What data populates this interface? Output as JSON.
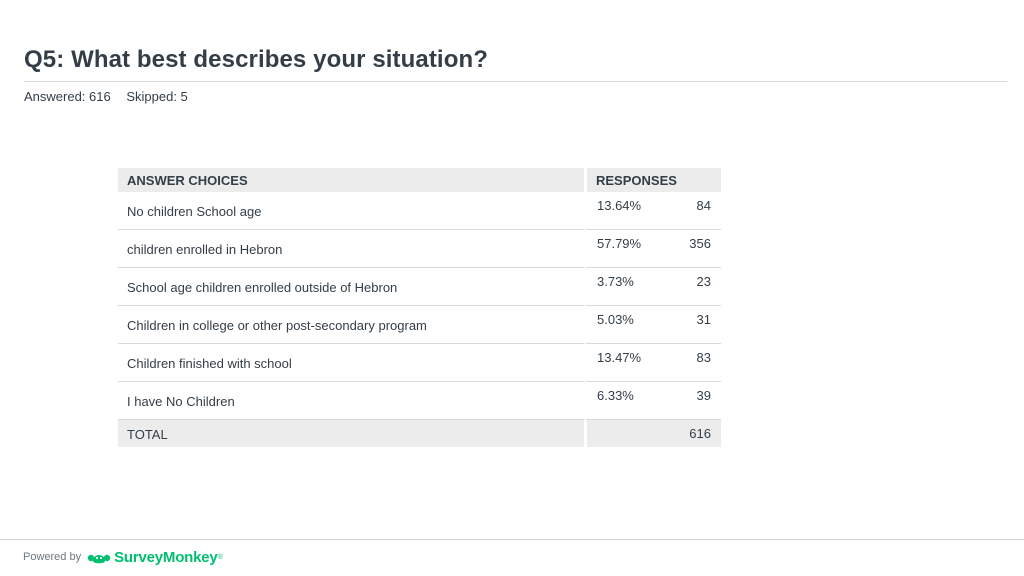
{
  "title": "Q5: What best describes your situation?",
  "stats": {
    "answered": "Answered: 616",
    "skipped": "Skipped: 5"
  },
  "table": {
    "headers": {
      "choices": "ANSWER CHOICES",
      "responses": "RESPONSES"
    },
    "rows": [
      {
        "choice": "No children School age",
        "percent": "13.64%",
        "count": "84"
      },
      {
        "choice": "children enrolled in Hebron",
        "percent": "57.79%",
        "count": "356"
      },
      {
        "choice": "School age children enrolled outside of Hebron",
        "percent": "3.73%",
        "count": "23"
      },
      {
        "choice": "Children in college or other post-secondary program",
        "percent": "5.03%",
        "count": "31"
      },
      {
        "choice": "Children finished with school",
        "percent": "13.47%",
        "count": "83"
      },
      {
        "choice": "I have No Children",
        "percent": "6.33%",
        "count": "39"
      }
    ],
    "total": {
      "label": "TOTAL",
      "count": "616"
    }
  },
  "footer": {
    "powered_by": "Powered by",
    "brand": "SurveyMonkey",
    "trademark": "®",
    "logo_icon": "surveymonkey-logo-icon",
    "brand_color": "#00bf6f"
  }
}
